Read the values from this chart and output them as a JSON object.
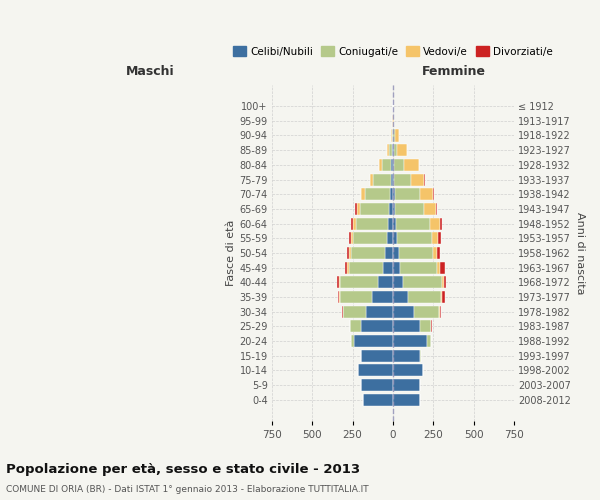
{
  "age_groups": [
    "0-4",
    "5-9",
    "10-14",
    "15-19",
    "20-24",
    "25-29",
    "30-34",
    "35-39",
    "40-44",
    "45-49",
    "50-54",
    "55-59",
    "60-64",
    "65-69",
    "70-74",
    "75-79",
    "80-84",
    "85-89",
    "90-94",
    "95-99",
    "100+"
  ],
  "birth_years": [
    "2008-2012",
    "2003-2007",
    "1998-2002",
    "1993-1997",
    "1988-1992",
    "1983-1987",
    "1978-1982",
    "1973-1977",
    "1968-1972",
    "1963-1967",
    "1958-1962",
    "1953-1957",
    "1948-1952",
    "1943-1947",
    "1938-1942",
    "1933-1937",
    "1928-1932",
    "1923-1927",
    "1918-1922",
    "1913-1917",
    "≤ 1912"
  ],
  "maschi": {
    "celibi": [
      185,
      195,
      215,
      195,
      240,
      200,
      165,
      130,
      90,
      60,
      50,
      35,
      30,
      25,
      20,
      15,
      10,
      5,
      2,
      1,
      0
    ],
    "coniugati": [
      0,
      0,
      0,
      3,
      20,
      65,
      145,
      200,
      240,
      215,
      210,
      215,
      200,
      180,
      155,
      110,
      60,
      20,
      3,
      1,
      0
    ],
    "vedovi": [
      0,
      0,
      0,
      0,
      1,
      1,
      2,
      3,
      5,
      8,
      10,
      10,
      15,
      20,
      20,
      18,
      15,
      10,
      4,
      1,
      0
    ],
    "divorziati": [
      0,
      0,
      0,
      0,
      1,
      2,
      5,
      10,
      10,
      15,
      15,
      15,
      15,
      8,
      5,
      2,
      1,
      0,
      0,
      0,
      0
    ]
  },
  "femmine": {
    "nubili": [
      165,
      170,
      185,
      170,
      210,
      170,
      130,
      95,
      60,
      45,
      35,
      25,
      20,
      15,
      10,
      8,
      5,
      5,
      2,
      1,
      0
    ],
    "coniugate": [
      0,
      0,
      0,
      5,
      25,
      65,
      155,
      205,
      245,
      225,
      210,
      215,
      210,
      180,
      155,
      105,
      65,
      20,
      8,
      2,
      0
    ],
    "vedove": [
      0,
      0,
      0,
      0,
      2,
      3,
      5,
      5,
      10,
      20,
      30,
      40,
      60,
      70,
      80,
      80,
      90,
      60,
      30,
      5,
      0
    ],
    "divorziate": [
      0,
      0,
      0,
      0,
      1,
      2,
      5,
      15,
      15,
      30,
      15,
      15,
      15,
      10,
      8,
      5,
      2,
      0,
      0,
      0,
      0
    ]
  },
  "colors": {
    "celibi": "#3d6fa0",
    "coniugati": "#b5c98a",
    "vedovi": "#f5c469",
    "divorziati": "#cc2222"
  },
  "title": "Popolazione per età, sesso e stato civile - 2013",
  "subtitle": "COMUNE DI ORIA (BR) - Dati ISTAT 1° gennaio 2013 - Elaborazione TUTTITALIA.IT",
  "ylabel": "Fasce di età",
  "ylabel_right": "Anni di nascita",
  "xlabel_left": "Maschi",
  "xlabel_right": "Femmine",
  "xlim": 750,
  "background_color": "#f5f5f0",
  "plot_bg": "#f5f5f0",
  "grid_color": "#cccccc"
}
